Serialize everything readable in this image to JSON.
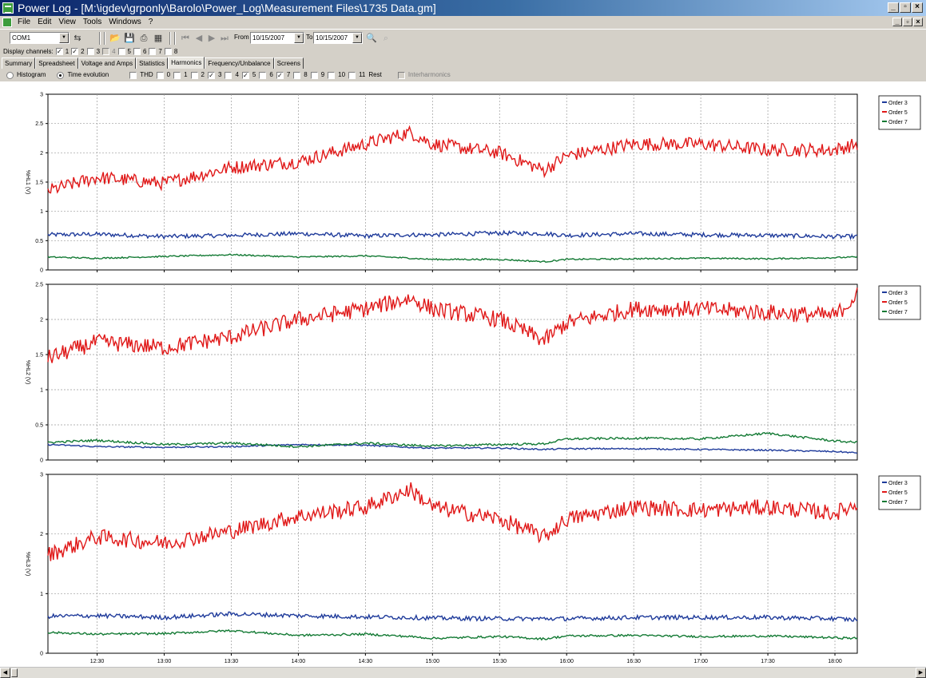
{
  "window": {
    "title": "Power Log - [M:\\igdev\\grponly\\Barolo\\Power_Log\\Measurement Files\\1735 Data.gm]"
  },
  "menu": [
    "File",
    "Edit",
    "View",
    "Tools",
    "Windows",
    "?"
  ],
  "toolbar": {
    "port": "COM1",
    "from_label": "From",
    "from_date": "10/15/2007",
    "to_label": "To",
    "to_date": "10/15/2007"
  },
  "channels": {
    "label": "Display channels:",
    "items": [
      {
        "label": "1",
        "checked": true,
        "enabled": true
      },
      {
        "label": "2",
        "checked": true,
        "enabled": true
      },
      {
        "label": "3",
        "checked": false,
        "enabled": true
      },
      {
        "label": "4",
        "checked": false,
        "enabled": false
      },
      {
        "label": "5",
        "checked": false,
        "enabled": true
      },
      {
        "label": "6",
        "checked": false,
        "enabled": true
      },
      {
        "label": "7",
        "checked": false,
        "enabled": true
      },
      {
        "label": "8",
        "checked": false,
        "enabled": true
      }
    ]
  },
  "tabs": [
    "Summary",
    "Spreadsheet",
    "Voltage and Amps",
    "Statistics",
    "Harmonics",
    "Frequency/Unbalance",
    "Screens"
  ],
  "active_tab": "Harmonics",
  "options": {
    "histogram": "Histogram",
    "time_evolution": "Time evolution",
    "orders": [
      {
        "label": "THD",
        "checked": false
      },
      {
        "label": "0",
        "checked": false
      },
      {
        "label": "1",
        "checked": false
      },
      {
        "label": "2",
        "checked": true
      },
      {
        "label": "3",
        "checked": false
      },
      {
        "label": "4",
        "checked": true
      },
      {
        "label": "5",
        "checked": false
      },
      {
        "label": "6",
        "checked": true
      },
      {
        "label": "7",
        "checked": false
      },
      {
        "label": "8",
        "checked": false
      },
      {
        "label": "9",
        "checked": false
      },
      {
        "label": "10",
        "checked": false
      },
      {
        "label": "11",
        "checked": false
      },
      {
        "label": "Rest",
        "checked": false
      }
    ],
    "interharmonics": "Interharmonics"
  },
  "chart_data": [
    {
      "type": "line",
      "ylabel": "%HL1 (V)",
      "ylim": [
        0,
        3
      ],
      "yticks": [
        "0",
        "0.5",
        "1",
        "1.5",
        "2",
        "2.5",
        "3"
      ],
      "x_ticks": [
        "12:30",
        "13:00",
        "13:30",
        "14:00",
        "14:30",
        "15:00",
        "15:30",
        "16:00",
        "16:30",
        "17:00",
        "17:30",
        "18:00"
      ],
      "x": [
        "12:08",
        "12:30",
        "13:00",
        "13:30",
        "14:00",
        "14:30",
        "14:50",
        "15:00",
        "15:30",
        "15:50",
        "16:00",
        "16:30",
        "17:00",
        "17:30",
        "18:00",
        "18:10"
      ],
      "legend": "top-right",
      "grid": true,
      "series": [
        {
          "name": "Order 3",
          "color": "#1f3b9b",
          "values": [
            0.6,
            0.61,
            0.57,
            0.59,
            0.62,
            0.58,
            0.6,
            0.6,
            0.63,
            0.62,
            0.59,
            0.62,
            0.6,
            0.59,
            0.57,
            0.57
          ]
        },
        {
          "name": "Order 5",
          "color": "#e01818",
          "values": [
            1.35,
            1.58,
            1.48,
            1.75,
            1.85,
            2.15,
            2.35,
            2.15,
            2.0,
            1.7,
            1.95,
            2.15,
            2.15,
            2.05,
            2.05,
            2.15
          ]
        },
        {
          "name": "Order 7",
          "color": "#137a34",
          "values": [
            0.22,
            0.2,
            0.23,
            0.26,
            0.22,
            0.24,
            0.2,
            0.18,
            0.18,
            0.14,
            0.18,
            0.19,
            0.2,
            0.19,
            0.21,
            0.22
          ]
        }
      ]
    },
    {
      "type": "line",
      "ylabel": "%HL2 (V)",
      "ylim": [
        0,
        2.5
      ],
      "yticks": [
        "0",
        "0.5",
        "1",
        "1.5",
        "2",
        "2.5"
      ],
      "x_ticks": [
        "12:30",
        "13:00",
        "13:30",
        "14:00",
        "14:30",
        "15:00",
        "15:30",
        "16:00",
        "16:30",
        "17:00",
        "17:30",
        "18:00"
      ],
      "x": [
        "12:08",
        "12:30",
        "13:00",
        "13:30",
        "14:00",
        "14:30",
        "14:50",
        "15:00",
        "15:30",
        "15:50",
        "16:00",
        "16:30",
        "17:00",
        "17:30",
        "18:00",
        "18:10"
      ],
      "legend": "top-right",
      "grid": true,
      "series": [
        {
          "name": "Order 3",
          "color": "#1f3b9b",
          "values": [
            0.22,
            0.19,
            0.18,
            0.19,
            0.22,
            0.21,
            0.18,
            0.17,
            0.17,
            0.15,
            0.16,
            0.16,
            0.15,
            0.14,
            0.12,
            0.1
          ]
        },
        {
          "name": "Order 5",
          "color": "#e01818",
          "values": [
            1.45,
            1.68,
            1.6,
            1.75,
            2.0,
            2.15,
            2.3,
            2.15,
            2.0,
            1.7,
            1.95,
            2.15,
            2.15,
            2.1,
            2.05,
            2.35
          ]
        },
        {
          "name": "Order 7",
          "color": "#137a34",
          "values": [
            0.25,
            0.28,
            0.22,
            0.24,
            0.19,
            0.24,
            0.21,
            0.2,
            0.22,
            0.23,
            0.3,
            0.31,
            0.3,
            0.38,
            0.27,
            0.25
          ]
        }
      ]
    },
    {
      "type": "line",
      "ylabel": "%HL3 (V)",
      "ylim": [
        0,
        3
      ],
      "yticks": [
        "0",
        "1",
        "2",
        "3"
      ],
      "x_ticks": [
        "12:30",
        "13:00",
        "13:30",
        "14:00",
        "14:30",
        "15:00",
        "15:30",
        "16:00",
        "16:30",
        "17:00",
        "17:30",
        "18:00"
      ],
      "x": [
        "12:08",
        "12:30",
        "13:00",
        "13:30",
        "14:00",
        "14:30",
        "14:50",
        "15:00",
        "15:30",
        "15:50",
        "16:00",
        "16:30",
        "17:00",
        "17:30",
        "18:00",
        "18:10"
      ],
      "legend": "top-right",
      "grid": true,
      "series": [
        {
          "name": "Order 3",
          "color": "#1f3b9b",
          "values": [
            0.62,
            0.63,
            0.6,
            0.66,
            0.63,
            0.61,
            0.6,
            0.59,
            0.58,
            0.58,
            0.58,
            0.6,
            0.6,
            0.6,
            0.58,
            0.56
          ]
        },
        {
          "name": "Order 5",
          "color": "#e01818",
          "values": [
            1.65,
            1.95,
            1.85,
            2.05,
            2.3,
            2.45,
            2.75,
            2.45,
            2.25,
            1.95,
            2.25,
            2.45,
            2.4,
            2.45,
            2.35,
            2.5
          ]
        },
        {
          "name": "Order 7",
          "color": "#137a34",
          "values": [
            0.35,
            0.32,
            0.33,
            0.38,
            0.3,
            0.32,
            0.28,
            0.25,
            0.28,
            0.24,
            0.29,
            0.3,
            0.28,
            0.29,
            0.26,
            0.25
          ]
        }
      ]
    }
  ]
}
